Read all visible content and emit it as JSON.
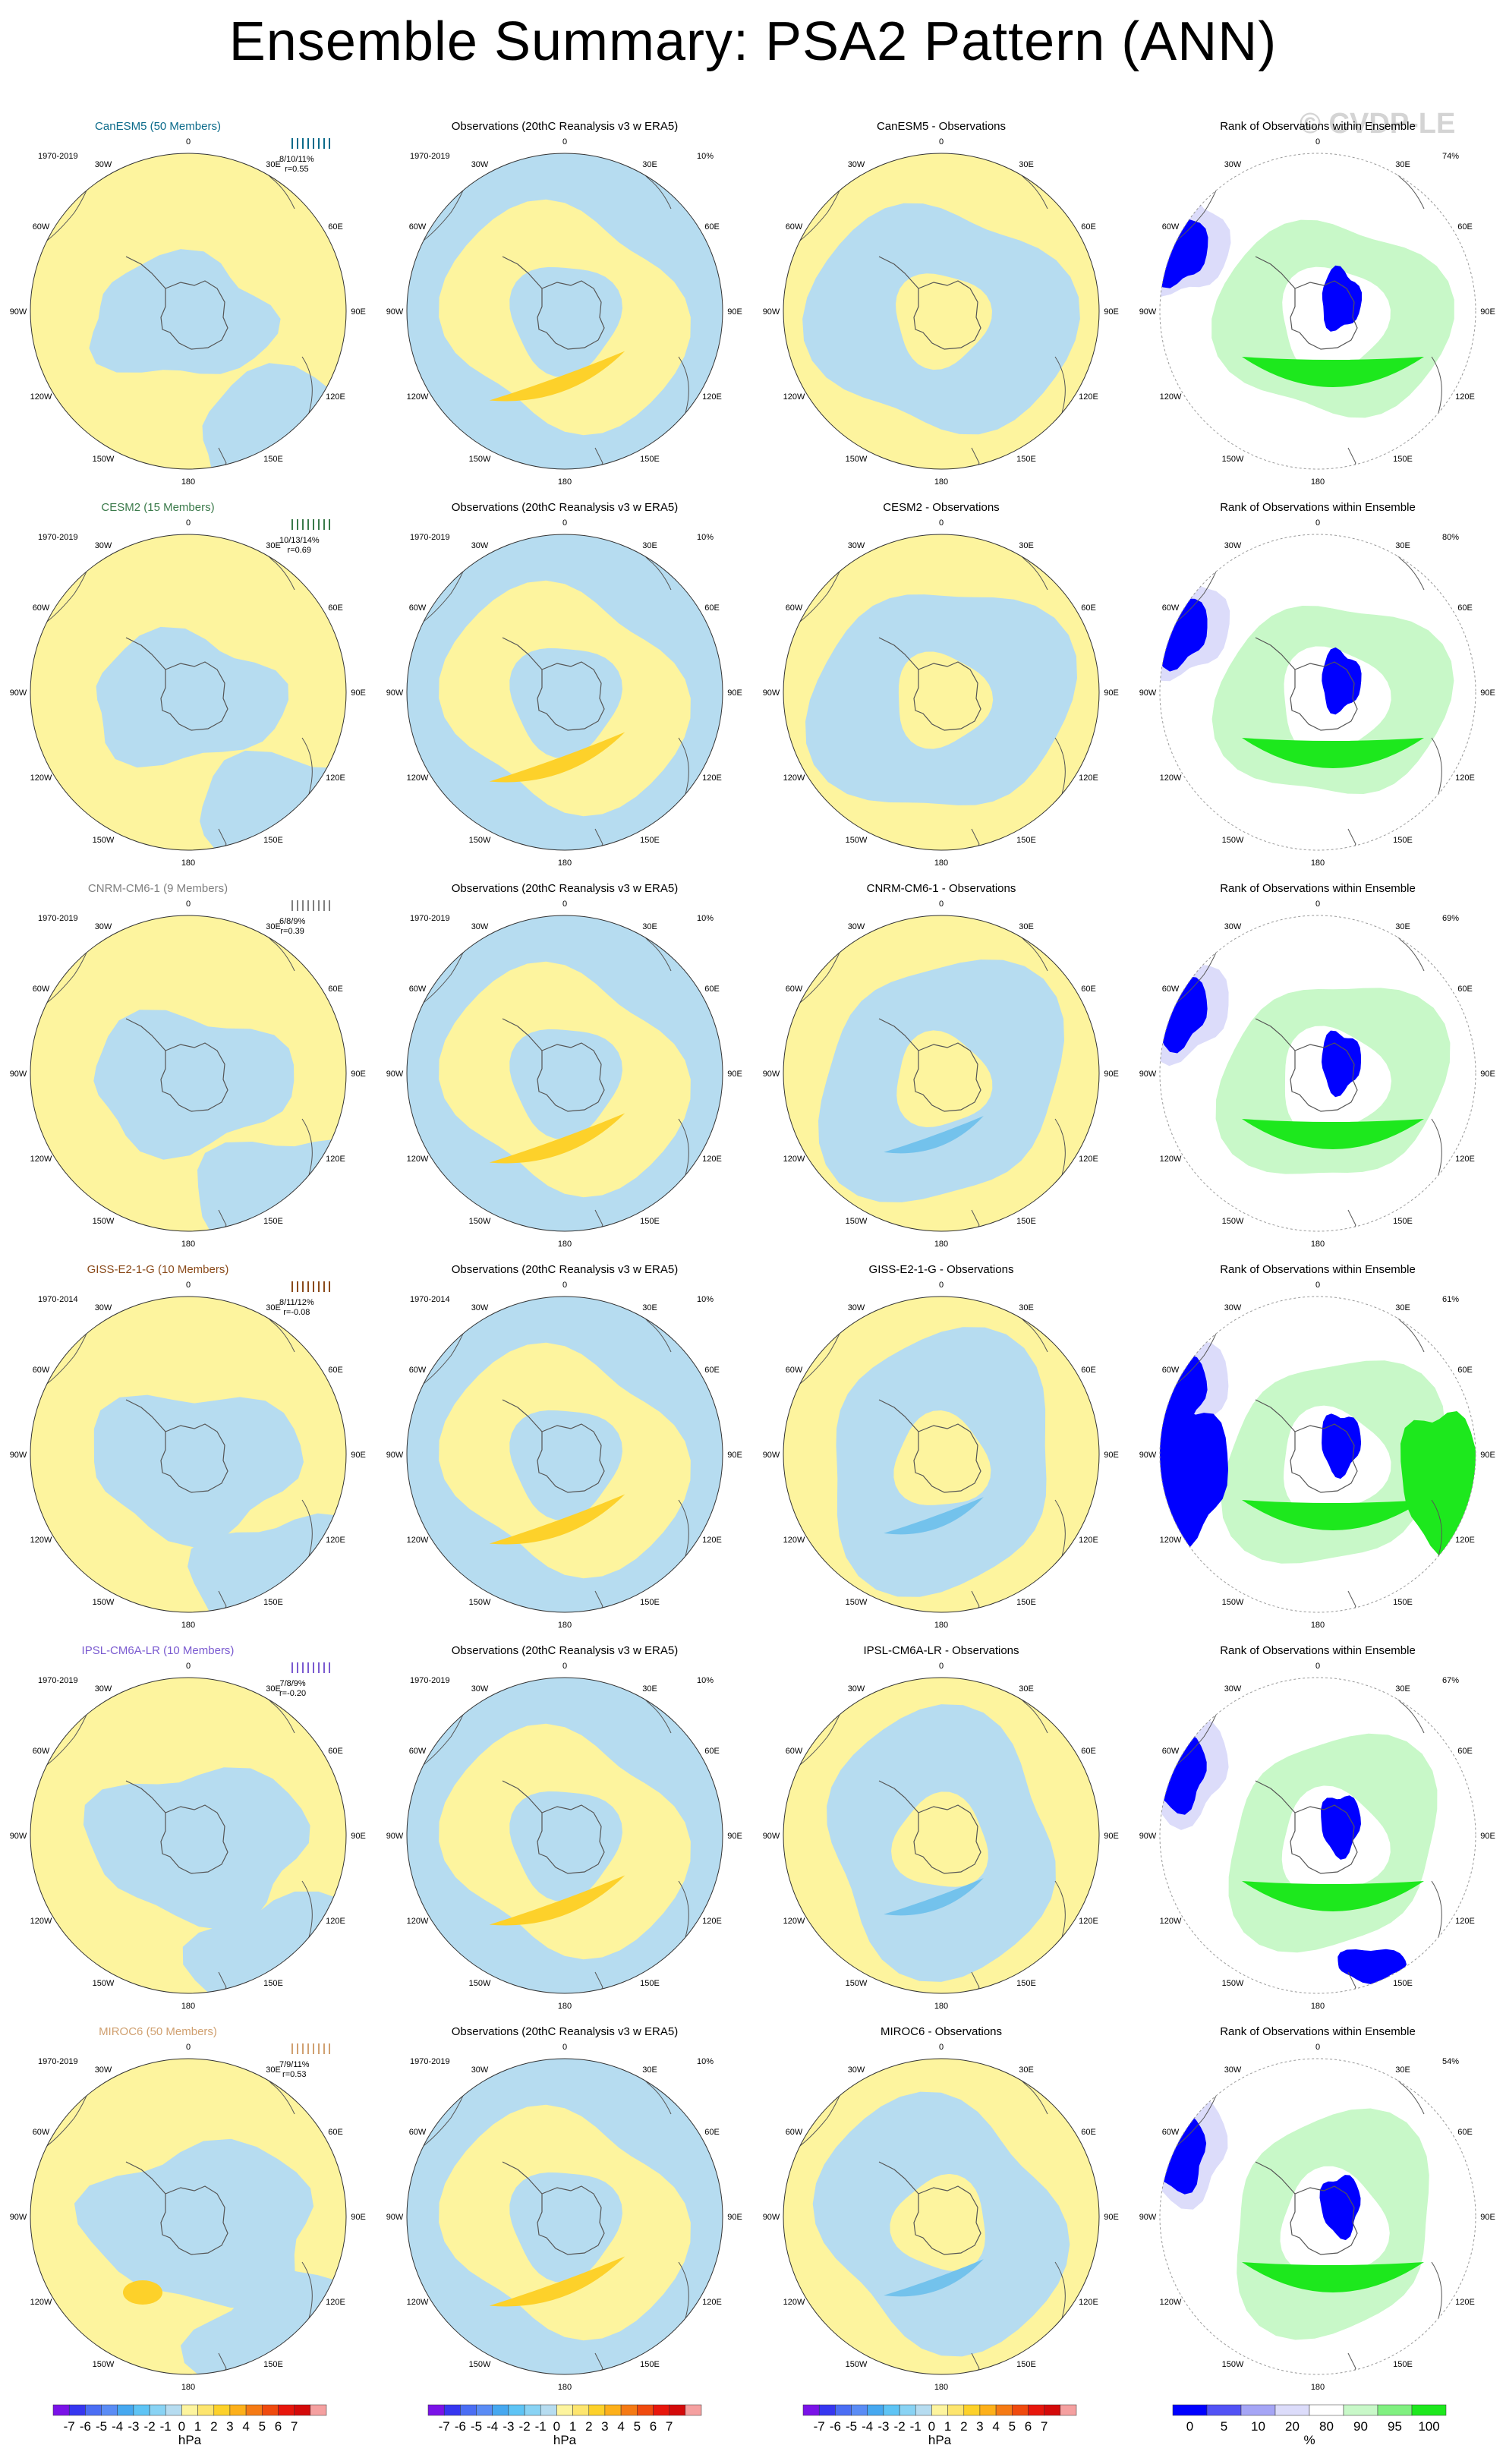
{
  "title": "Ensemble Summary: PSA2 Pattern (ANN)",
  "watermark": "© CVDP-LE",
  "lon_labels": [
    "0",
    "30E",
    "60E",
    "90E",
    "120E",
    "150E",
    "180",
    "150W",
    "120W",
    "90W",
    "60W",
    "30W"
  ],
  "colors": {
    "land": "none",
    "neg_light": "#b6dcf0",
    "neg_mid": "#73c2ec",
    "pos_light": "#fdf49e",
    "pos_mid": "#fdd12a",
    "rank_low": "#0000ff",
    "rank_lowmid": "#8c8cf0",
    "rank_lowlight": "#dcdcfa",
    "rank_high": "#1de81d",
    "rank_highlight": "#c8f8c8",
    "rank_highmid": "#80f080"
  },
  "chart_data": {
    "type": "heatmap",
    "description_columns": [
      "model ensemble",
      "observations",
      "model - observations",
      "rank of observations"
    ],
    "units": {
      "pattern": "hPa",
      "rank": "%"
    },
    "pattern_colorbar": {
      "tick_labels": [
        "-7",
        "-6",
        "-5",
        "-4",
        "-3",
        "-2",
        "-1",
        "0",
        "1",
        "2",
        "3",
        "4",
        "5",
        "6",
        "7"
      ],
      "colors": [
        "#7a12e8",
        "#3636f0",
        "#4b6ef4",
        "#5a8cf5",
        "#46a8f0",
        "#5ec4f5",
        "#89d3f4",
        "#b6dcf0",
        "#fdf49e",
        "#fde56e",
        "#fdd12a",
        "#fdb01a",
        "#f57a14",
        "#f04a0e",
        "#e8160c",
        "#d40a0a",
        "#f5a0a0"
      ]
    },
    "rank_colorbar": {
      "tick_labels": [
        "0",
        "5",
        "10",
        "20",
        "80",
        "90",
        "95",
        "100"
      ],
      "colors": [
        "#0000ff",
        "#5252f5",
        "#a5a5f5",
        "#dcdcfa",
        "#ffffff",
        "#c8f8c8",
        "#80f080",
        "#1de81d"
      ]
    },
    "rows": [
      {
        "model": "CanESM5 (50 Members)",
        "model_color": "#0a6a8a",
        "period_model": "1970-2019",
        "period_obs": "1970-2019",
        "obs_title": "Observations (20thC Reanalysis v3 w ERA5)",
        "obs_pct": "10%",
        "diff_title": "CanESM5 - Observations",
        "rank_title": "Rank of Observations within Ensemble",
        "rank_pct": "74%",
        "stats_pct": "8/10/11%",
        "stats_r": "r=0.55"
      },
      {
        "model": "CESM2 (15 Members)",
        "model_color": "#3a7a4a",
        "period_model": "1970-2019",
        "period_obs": "1970-2019",
        "obs_title": "Observations (20thC Reanalysis v3 w ERA5)",
        "obs_pct": "10%",
        "diff_title": "CESM2 - Observations",
        "rank_title": "Rank of Observations within Ensemble",
        "rank_pct": "80%",
        "stats_pct": "10/13/14%",
        "stats_r": "r=0.69"
      },
      {
        "model": "CNRM-CM6-1 (9 Members)",
        "model_color": "#808080",
        "period_model": "1970-2019",
        "period_obs": "1970-2019",
        "obs_title": "Observations (20thC Reanalysis v3 w ERA5)",
        "obs_pct": "10%",
        "diff_title": "CNRM-CM6-1 - Observations",
        "rank_title": "Rank of Observations within Ensemble",
        "rank_pct": "69%",
        "stats_pct": "6/8/9%",
        "stats_r": "r=0.39"
      },
      {
        "model": "GISS-E2-1-G (10 Members)",
        "model_color": "#8a4a1a",
        "period_model": "1970-2014",
        "period_obs": "1970-2014",
        "obs_title": "Observations (20thC Reanalysis v3 w ERA5)",
        "obs_pct": "10%",
        "diff_title": "GISS-E2-1-G - Observations",
        "rank_title": "Rank of Observations within Ensemble",
        "rank_pct": "61%",
        "stats_pct": "8/11/12%",
        "stats_r": "r=-0.08"
      },
      {
        "model": "IPSL-CM6A-LR (10 Members)",
        "model_color": "#7a5ad0",
        "period_model": "1970-2019",
        "period_obs": "1970-2019",
        "obs_title": "Observations (20thC Reanalysis v3 w ERA5)",
        "obs_pct": "10%",
        "diff_title": "IPSL-CM6A-LR - Observations",
        "rank_title": "Rank of Observations within Ensemble",
        "rank_pct": "67%",
        "stats_pct": "7/8/9%",
        "stats_r": "r=-0.20"
      },
      {
        "model": "MIROC6 (50 Members)",
        "model_color": "#d0a070",
        "period_model": "1970-2019",
        "period_obs": "1970-2019",
        "obs_title": "Observations (20thC Reanalysis v3 w ERA5)",
        "obs_pct": "10%",
        "diff_title": "MIROC6 - Observations",
        "rank_title": "Rank of Observations within Ensemble",
        "rank_pct": "54%",
        "stats_pct": "7/9/11%",
        "stats_r": "r=0.53"
      }
    ]
  }
}
